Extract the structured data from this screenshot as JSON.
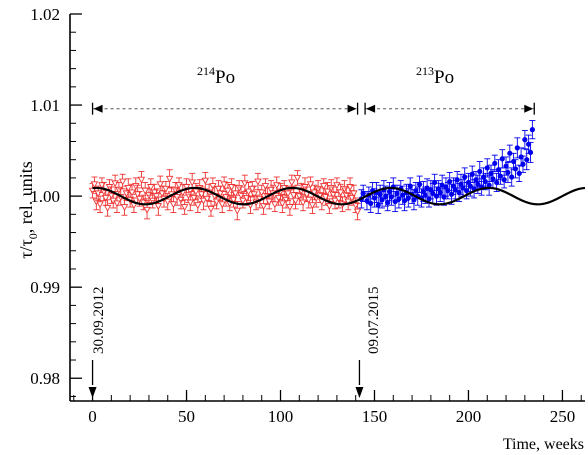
{
  "chart_data": {
    "type": "scatter",
    "title": "",
    "xlabel": "Time, weeks",
    "ylabel_main": "τ/τ",
    "ylabel_sub": "0",
    "ylabel_rest": ", rel. units",
    "xlim": [
      -12,
      262
    ],
    "ylim": [
      0.9775,
      1.02
    ],
    "x_ticks": [
      0,
      50,
      100,
      150,
      200,
      250
    ],
    "x_tick_labels": [
      "0",
      "50",
      "100",
      "150",
      "200",
      "250"
    ],
    "y_ticks": [
      0.98,
      0.99,
      1.0,
      1.01,
      1.02
    ],
    "y_tick_labels": [
      "0.98",
      "0.99",
      "1.00",
      "1.01",
      "1.02"
    ],
    "grid": false,
    "colors": {
      "po214": "#ee3333",
      "po213": "#0000ee",
      "fit": "#000000",
      "range": "#000000"
    },
    "annotations": {
      "po214_label": {
        "sup": "214",
        "text": "Po"
      },
      "po213_label": {
        "sup": "213",
        "text": "Po"
      },
      "start_date": "30.09.2012",
      "switch_date": "09.07.2015"
    },
    "ranges": [
      {
        "x1": 0,
        "x2": 141,
        "y": 1.0096
      },
      {
        "x1": 145,
        "x2": 235,
        "y": 1.0096
      }
    ],
    "date_markers": [
      {
        "x": 0
      },
      {
        "x": 142
      }
    ],
    "fit": {
      "name": "annual-fit",
      "offset": 1.0,
      "amplitude": 0.0009,
      "period_weeks": 52.2,
      "phase_x": 2,
      "x_range": [
        0,
        262
      ]
    },
    "series": [
      {
        "name": "214Po",
        "marker": "open-triangle-down",
        "x": [
          0,
          1,
          2,
          3,
          4,
          5,
          6,
          7,
          8,
          9,
          10,
          11,
          12,
          13,
          14,
          15,
          16,
          17,
          18,
          19,
          20,
          21,
          22,
          23,
          24,
          25,
          26,
          27,
          28,
          29,
          30,
          31,
          32,
          33,
          34,
          35,
          36,
          37,
          38,
          39,
          40,
          41,
          42,
          43,
          44,
          45,
          46,
          47,
          48,
          49,
          50,
          51,
          52,
          53,
          54,
          55,
          56,
          57,
          58,
          59,
          60,
          61,
          62,
          63,
          64,
          65,
          66,
          67,
          68,
          69,
          70,
          71,
          72,
          73,
          74,
          75,
          76,
          77,
          78,
          79,
          80,
          81,
          82,
          83,
          84,
          85,
          86,
          87,
          88,
          89,
          90,
          91,
          92,
          93,
          94,
          95,
          96,
          97,
          98,
          99,
          100,
          101,
          102,
          103,
          104,
          105,
          106,
          107,
          108,
          109,
          110,
          111,
          112,
          113,
          114,
          115,
          116,
          117,
          118,
          119,
          120,
          121,
          122,
          123,
          124,
          125,
          126,
          127,
          128,
          129,
          130,
          131,
          132,
          133,
          134,
          135,
          136,
          137,
          138,
          139,
          140,
          141
        ],
        "y": [
          1.0006,
          1.0013,
          0.9994,
          1.0003,
          0.9991,
          1.0012,
          1.0005,
          0.9998,
          0.9987,
          1.001,
          1.0001,
          0.9995,
          1.0014,
          0.9992,
          1.0007,
          0.9999,
          1.0016,
          0.9988,
          1.0003,
          1.0009,
          0.9996,
          1.0004,
          0.999,
          1.0011,
          1.0002,
          0.9997,
          1.0018,
          0.9993,
          1.0006,
          0.9985,
          1.0001,
          1.001,
          0.9995,
          1.0004,
          1.0,
          0.9989,
          1.0013,
          1.0003,
          0.9997,
          1.0008,
          0.9994,
          1.0019,
          1.0002,
          0.9991,
          1.0007,
          0.9999,
          1.0012,
          0.9996,
          1.0004,
          0.9988,
          1.001,
          1.0001,
          0.9993,
          1.0015,
          0.9998,
          1.0005,
          0.999,
          1.0009,
          1.0002,
          0.9995,
          1.0017,
          0.9997,
          1.0004,
          0.9986,
          1.0011,
          1.0,
          0.9994,
          1.0008,
          1.0003,
          0.9991,
          1.0013,
          0.9999,
          1.0006,
          0.9992,
          1.001,
          0.9996,
          1.0003,
          0.9984,
          1.0009,
          1.0001,
          0.9995,
          1.0014,
          0.9998,
          1.0005,
          0.999,
          1.0008,
          1.0002,
          0.9993,
          1.0016,
          0.9997,
          1.0004,
          0.9989,
          1.0011,
          1.0,
          0.9994,
          1.0007,
          1.0003,
          0.9991,
          1.0012,
          0.9998,
          1.0005,
          0.9992,
          1.0009,
          0.9996,
          1.0003,
          0.9988,
          1.0015,
          1.0001,
          0.9995,
          1.002,
          1.0,
          1.0006,
          0.9993,
          1.001,
          1.0002,
          0.9996,
          1.0013,
          0.999,
          1.0004,
          0.9998,
          1.0008,
          1.0001,
          0.9994,
          1.0011,
          0.9999,
          1.0005,
          0.9989,
          1.0009,
          1.0002,
          0.9995,
          1.0012,
          0.9997,
          1.0004,
          0.9991,
          1.0008,
          1.0001,
          0.9994,
          1.001,
          0.9998,
          1.0003,
          0.999,
          0.9983
        ],
        "err": [
          0.0008,
          0.0008,
          0.0009,
          0.0008,
          0.0009,
          0.0008,
          0.001,
          0.0008,
          0.0009,
          0.0008,
          0.0009,
          0.0008,
          0.0009,
          0.001,
          0.0008,
          0.0009,
          0.0008,
          0.0009,
          0.0008,
          0.001,
          0.0008,
          0.0009,
          0.0008,
          0.0009,
          0.001,
          0.0008,
          0.0009,
          0.0008,
          0.0009,
          0.001,
          0.0008,
          0.0009,
          0.0008,
          0.0009,
          0.0008,
          0.001,
          0.0009,
          0.0008,
          0.0009,
          0.0008,
          0.0009,
          0.001,
          0.0008,
          0.0009,
          0.0008,
          0.0009,
          0.0008,
          0.001,
          0.0009,
          0.0008,
          0.0009,
          0.0008,
          0.0009,
          0.001,
          0.0008,
          0.0009,
          0.0008,
          0.0009,
          0.0008,
          0.001,
          0.0009,
          0.0008,
          0.0009,
          0.0008,
          0.0009,
          0.001,
          0.0008,
          0.0009,
          0.0008,
          0.0009,
          0.0008,
          0.001,
          0.0009,
          0.0008,
          0.0009,
          0.0008,
          0.0009,
          0.001,
          0.0008,
          0.0009,
          0.0008,
          0.0009,
          0.0008,
          0.001,
          0.0009,
          0.0008,
          0.0009,
          0.0008,
          0.0009,
          0.001,
          0.0008,
          0.0009,
          0.0008,
          0.0009,
          0.0008,
          0.001,
          0.0009,
          0.0008,
          0.0009,
          0.0008,
          0.0009,
          0.001,
          0.0008,
          0.0009,
          0.0008,
          0.0009,
          0.0008,
          0.001,
          0.0009,
          0.0008,
          0.0009,
          0.0008,
          0.0009,
          0.001,
          0.0008,
          0.0009,
          0.0008,
          0.0009,
          0.0008,
          0.001,
          0.0009,
          0.0008,
          0.0009,
          0.0008,
          0.0009,
          0.001,
          0.0008,
          0.0009,
          0.0008,
          0.0009,
          0.0008,
          0.001,
          0.0009,
          0.0008,
          0.0009,
          0.0008,
          0.0009,
          0.001,
          0.0008,
          0.0009,
          0.0008,
          0.0009
        ]
      },
      {
        "name": "213Po",
        "marker": "filled-circle",
        "x": [
          143,
          144,
          146,
          147,
          148,
          149,
          150,
          151,
          152,
          153,
          154,
          155,
          156,
          157,
          158,
          159,
          160,
          161,
          162,
          163,
          164,
          165,
          166,
          167,
          168,
          169,
          170,
          171,
          172,
          173,
          174,
          175,
          176,
          177,
          178,
          179,
          180,
          181,
          182,
          183,
          184,
          185,
          186,
          187,
          188,
          189,
          190,
          191,
          192,
          193,
          194,
          195,
          196,
          197,
          198,
          199,
          200,
          201,
          202,
          203,
          204,
          205,
          206,
          207,
          208,
          209,
          210,
          211,
          212,
          213,
          214,
          215,
          216,
          217,
          218,
          219,
          220,
          221,
          222,
          223,
          224,
          225,
          226,
          227,
          228,
          229,
          230,
          231,
          232,
          233,
          234
        ],
        "y": [
          0.9997,
          1.0003,
          0.9995,
          1.0001,
          0.9992,
          1.0006,
          0.9998,
          1.0004,
          0.999,
          1.0002,
          0.9996,
          1.0007,
          1.0,
          0.9993,
          1.0005,
          0.9999,
          1.001,
          0.9994,
          1.0003,
          0.9997,
          1.0008,
          1.0001,
          0.9995,
          1.0004,
          0.9998,
          1.0011,
          1.0002,
          0.9996,
          1.0006,
          1.0,
          1.0013,
          0.9998,
          1.0005,
          1.0001,
          1.0009,
          0.9997,
          1.0007,
          1.0003,
          1.0015,
          1.0,
          1.0008,
          1.0004,
          1.0012,
          0.9999,
          1.001,
          1.0006,
          1.0016,
          1.0002,
          1.0011,
          1.0007,
          1.0018,
          1.0004,
          1.0013,
          1.0009,
          1.0021,
          1.0006,
          1.0015,
          1.0011,
          1.0024,
          1.0008,
          1.0018,
          1.0013,
          1.0027,
          1.001,
          1.0021,
          1.0016,
          1.0031,
          1.0012,
          1.0025,
          1.0019,
          1.0036,
          1.0015,
          1.0029,
          1.0022,
          1.0041,
          1.0018,
          1.0033,
          1.0026,
          1.0047,
          1.0021,
          1.0038,
          1.003,
          1.0053,
          1.0025,
          1.0043,
          1.0035,
          1.0062,
          1.004,
          1.0057,
          1.0048,
          1.0073
        ],
        "err": [
          0.001,
          0.0009,
          0.001,
          0.0009,
          0.001,
          0.0009,
          0.001,
          0.0011,
          0.0009,
          0.001,
          0.0009,
          0.001,
          0.0011,
          0.0009,
          0.001,
          0.0009,
          0.001,
          0.0011,
          0.0009,
          0.001,
          0.0009,
          0.001,
          0.0011,
          0.0009,
          0.001,
          0.0009,
          0.001,
          0.0011,
          0.0009,
          0.001,
          0.0009,
          0.001,
          0.0011,
          0.0009,
          0.001,
          0.0009,
          0.001,
          0.0011,
          0.0009,
          0.001,
          0.0009,
          0.001,
          0.0011,
          0.0009,
          0.001,
          0.0009,
          0.001,
          0.0011,
          0.0009,
          0.001,
          0.0009,
          0.001,
          0.0011,
          0.0009,
          0.001,
          0.0009,
          0.001,
          0.0011,
          0.0009,
          0.001,
          0.0009,
          0.001,
          0.0011,
          0.0009,
          0.001,
          0.0009,
          0.001,
          0.0011,
          0.0009,
          0.001,
          0.0009,
          0.001,
          0.0011,
          0.0009,
          0.001,
          0.0009,
          0.001,
          0.0011,
          0.0009,
          0.001,
          0.0009,
          0.001,
          0.0011,
          0.0009,
          0.001,
          0.0009,
          0.001,
          0.0011,
          0.001,
          0.0011,
          0.001
        ]
      }
    ]
  }
}
